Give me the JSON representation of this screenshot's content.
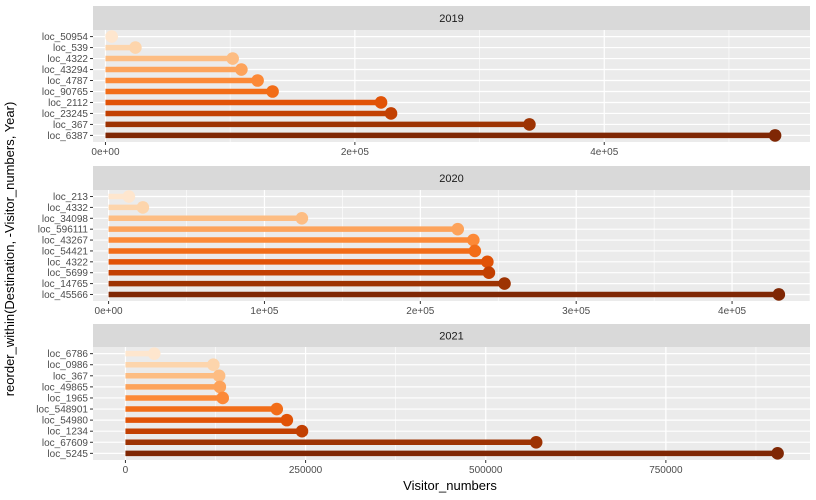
{
  "chart_data": {
    "type": "lollipop",
    "xlabel": "Visitor_numbers",
    "ylabel": "reorder_within(Destination, -Visitor_numbers, Year)",
    "colors": {
      "panel_bg": "#ebebeb",
      "strip_bg": "#d9d9d9",
      "grid": "#ffffff",
      "palette": [
        "#fee6ce",
        "#fdd0a2",
        "#fdae6b",
        "#fd8d3c",
        "#f16913",
        "#d94801",
        "#a63603",
        "#7f2704"
      ]
    },
    "panels": [
      {
        "title": "2019",
        "xlim": [
          -10000,
          565000
        ],
        "xticks": [
          0,
          200000,
          400000
        ],
        "xticklabels": [
          "0e+00",
          "2e+05",
          "4e+05"
        ],
        "destinations": [
          "loc_50954",
          "loc_539",
          "loc_4322",
          "loc_43294",
          "loc_4787",
          "loc_90765",
          "loc_2112",
          "loc_23245",
          "loc_367",
          "loc_6387"
        ],
        "values": [
          5000,
          24000,
          102000,
          109000,
          122000,
          134000,
          221000,
          229000,
          340000,
          537000
        ]
      },
      {
        "title": "2020",
        "xlim": [
          -10000,
          450000
        ],
        "xticks": [
          0,
          100000,
          200000,
          300000,
          400000
        ],
        "xticklabels": [
          "0e+00",
          "1e+05",
          "2e+05",
          "3e+05",
          "4e+05"
        ],
        "destinations": [
          "loc_213",
          "loc_4332",
          "loc_34098",
          "loc_596111",
          "loc_43267",
          "loc_54421",
          "loc_4322",
          "loc_5699",
          "loc_14765",
          "loc_45566"
        ],
        "values": [
          13000,
          22000,
          124000,
          224000,
          234000,
          235000,
          243000,
          244000,
          254000,
          430000
        ]
      },
      {
        "title": "2021",
        "xlim": [
          -45000,
          950000
        ],
        "xticks": [
          0,
          250000,
          500000,
          750000
        ],
        "xticklabels": [
          "0",
          "250000",
          "500000",
          "750000"
        ],
        "destinations": [
          "loc_6786",
          "loc_0986",
          "loc_367",
          "loc_49865",
          "loc_1965",
          "loc_548901",
          "loc_54980",
          "loc_1234",
          "loc_67609",
          "loc_5245"
        ],
        "values": [
          40000,
          122000,
          130000,
          131000,
          135000,
          210000,
          224000,
          245000,
          570000,
          905000
        ]
      }
    ]
  }
}
